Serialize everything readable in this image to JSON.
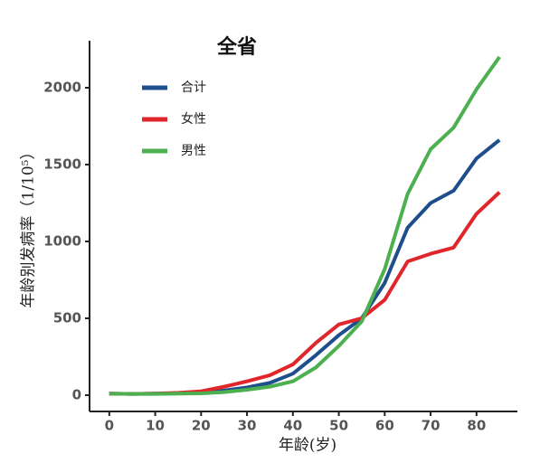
{
  "chart_data": {
    "type": "line",
    "title": "全省",
    "xlabel": "年龄(岁)",
    "ylabel": "年龄别发病率（1/10⁵）",
    "x": [
      0,
      5,
      10,
      15,
      20,
      25,
      30,
      35,
      40,
      45,
      50,
      55,
      60,
      65,
      70,
      75,
      80,
      85
    ],
    "series": [
      {
        "name": "合计",
        "color": "#1f4e8c",
        "values": [
          10,
          8,
          10,
          12,
          20,
          30,
          50,
          80,
          140,
          260,
          390,
          500,
          730,
          1090,
          1250,
          1330,
          1540,
          1660
        ]
      },
      {
        "name": "女性",
        "color": "#e0262b",
        "values": [
          10,
          8,
          10,
          15,
          25,
          55,
          90,
          130,
          200,
          340,
          460,
          500,
          620,
          870,
          920,
          960,
          1180,
          1320
        ]
      },
      {
        "name": "男性",
        "color": "#4caf50",
        "values": [
          10,
          8,
          8,
          10,
          12,
          20,
          35,
          55,
          90,
          180,
          320,
          480,
          820,
          1310,
          1600,
          1740,
          1990,
          2200
        ]
      }
    ],
    "xlim": [
      -4.3,
      88.9
    ],
    "ylim": [
      -106,
      2306
    ],
    "xticks": [
      0,
      10,
      20,
      30,
      40,
      50,
      60,
      70,
      80
    ],
    "yticks": [
      0,
      500,
      1000,
      1500,
      2000
    ],
    "legend": "upper-left"
  }
}
